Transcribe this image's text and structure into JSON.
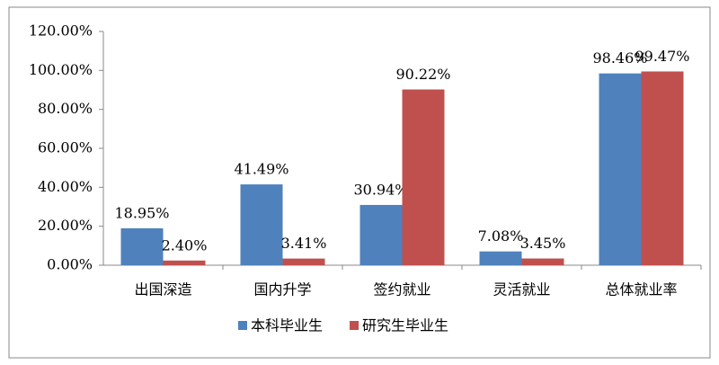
{
  "chart_data": {
    "type": "bar",
    "categories": [
      "出国深造",
      "国内升学",
      "签约就业",
      "灵活就业",
      "总体就业率"
    ],
    "series": [
      {
        "name": "本科毕业生",
        "color": "#4f81bd",
        "values": [
          18.95,
          41.49,
          30.94,
          7.08,
          98.46
        ],
        "value_labels": [
          "18.95%",
          "41.49%",
          "30.94%",
          "7.08%",
          "98.46%"
        ]
      },
      {
        "name": "研究生毕业生",
        "color": "#c0504d",
        "values": [
          2.4,
          3.41,
          90.22,
          3.45,
          99.47
        ],
        "value_labels": [
          "2.40%",
          "3.41%",
          "90.22%",
          "3.45%",
          "99.47%"
        ]
      }
    ],
    "ylim": [
      0,
      120
    ],
    "yticks": [
      {
        "value": 0,
        "label": "0.00%"
      },
      {
        "value": 20,
        "label": "20.00%"
      },
      {
        "value": 40,
        "label": "40.00%"
      },
      {
        "value": 60,
        "label": "60.00%"
      },
      {
        "value": 80,
        "label": "80.00%"
      },
      {
        "value": 100,
        "label": "100.00%"
      },
      {
        "value": 120,
        "label": "120.00%"
      }
    ],
    "grid": false,
    "legend": "bottom"
  }
}
